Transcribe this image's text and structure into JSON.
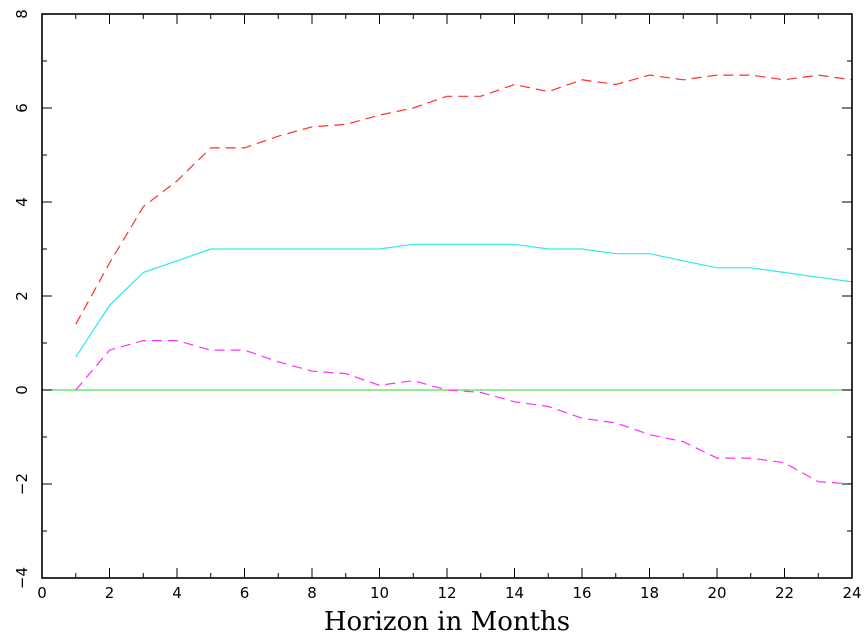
{
  "chart_data": {
    "type": "line",
    "title": "",
    "xlabel": "Horizon in Months",
    "ylabel": "",
    "xlim": [
      0,
      24
    ],
    "ylim": [
      -4,
      8
    ],
    "x_ticks": [
      0,
      2,
      4,
      6,
      8,
      10,
      12,
      14,
      16,
      18,
      20,
      22,
      24
    ],
    "y_ticks": [
      -4,
      -2,
      0,
      2,
      4,
      6,
      8
    ],
    "grid": false,
    "legend": "none",
    "x": [
      1,
      2,
      3,
      4,
      5,
      6,
      7,
      8,
      9,
      10,
      11,
      12,
      13,
      14,
      15,
      16,
      17,
      18,
      19,
      20,
      21,
      22,
      23,
      24
    ],
    "series": [
      {
        "style": "dashed",
        "color": "#ff3030",
        "values": [
          1.4,
          2.7,
          3.9,
          4.45,
          5.15,
          5.15,
          5.4,
          5.6,
          5.65,
          5.85,
          6.0,
          6.25,
          6.25,
          6.5,
          6.35,
          6.6,
          6.5,
          6.7,
          6.6,
          6.7,
          6.7,
          6.6,
          6.7,
          6.6
        ]
      },
      {
        "style": "solid",
        "color": "#30e8f0",
        "values": [
          0.7,
          1.8,
          2.5,
          2.75,
          3.0,
          3.0,
          3.0,
          3.0,
          3.0,
          3.0,
          3.1,
          3.1,
          3.1,
          3.1,
          3.0,
          3.0,
          2.9,
          2.9,
          2.75,
          2.6,
          2.6,
          2.5,
          2.4,
          2.3
        ]
      },
      {
        "style": "dashed",
        "color": "#ff30ff",
        "values": [
          0.0,
          0.85,
          1.05,
          1.05,
          0.85,
          0.85,
          0.6,
          0.4,
          0.35,
          0.1,
          0.2,
          0.0,
          -0.05,
          -0.25,
          -0.35,
          -0.6,
          -0.7,
          -0.95,
          -1.1,
          -1.45,
          -1.45,
          -1.55,
          -1.95,
          -2.0
        ]
      },
      {
        "style": "solid",
        "color": "#50e050",
        "x": [
          0,
          24
        ],
        "values": [
          0,
          0
        ]
      }
    ]
  }
}
